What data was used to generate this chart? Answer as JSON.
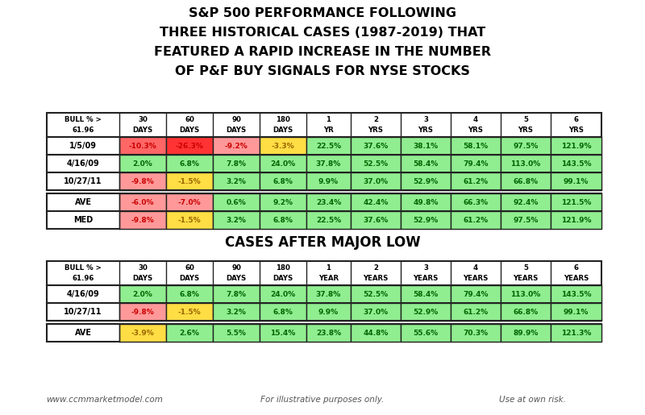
{
  "title_lines": [
    "S&P 500 PERFORMANCE FOLLOWING",
    "THREE HISTORICAL CASES (1987-2019) THAT",
    "FEATURED A RAPID INCREASE IN THE NUMBER",
    "OF P&F BUY SIGNALS FOR NYSE STOCKS"
  ],
  "subtitle2": "CASES AFTER MAJOR LOW",
  "footer": [
    "www.ccmmarketmodel.com",
    "For illustrative purposes only.",
    "Use at own risk."
  ],
  "table1": {
    "col_headers_line1": [
      "BULL % >",
      "30",
      "60",
      "90",
      "180",
      "1",
      "2",
      "3",
      "4",
      "5",
      "6"
    ],
    "col_headers_line2": [
      "61.96",
      "DAYS",
      "DAYS",
      "DAYS",
      "DAYS",
      "YR",
      "YRS",
      "YRS",
      "YRS",
      "YRS",
      "YRS"
    ],
    "rows": [
      {
        "label": "1/5/09",
        "values": [
          "-10.3%",
          "-26.3%",
          "-9.2%",
          "-3.3%",
          "22.5%",
          "37.6%",
          "38.1%",
          "58.1%",
          "97.5%",
          "121.9%"
        ]
      },
      {
        "label": "4/16/09",
        "values": [
          "2.0%",
          "6.8%",
          "7.8%",
          "24.0%",
          "37.8%",
          "52.5%",
          "58.4%",
          "79.4%",
          "113.0%",
          "143.5%"
        ]
      },
      {
        "label": "10/27/11",
        "values": [
          "-9.8%",
          "-1.5%",
          "3.2%",
          "6.8%",
          "9.9%",
          "37.0%",
          "52.9%",
          "61.2%",
          "66.8%",
          "99.1%"
        ]
      }
    ],
    "ave_row": {
      "label": "AVE",
      "values": [
        "-6.0%",
        "-7.0%",
        "0.6%",
        "9.2%",
        "23.4%",
        "42.4%",
        "49.8%",
        "66.3%",
        "92.4%",
        "121.5%"
      ]
    },
    "med_row": {
      "label": "MED",
      "values": [
        "-9.8%",
        "-1.5%",
        "3.2%",
        "6.8%",
        "22.5%",
        "37.6%",
        "52.9%",
        "61.2%",
        "97.5%",
        "121.9%"
      ]
    },
    "cell_colors": [
      [
        "#ff6666",
        "#ff3333",
        "#ff9999",
        "#ffdd44",
        "#90ee90",
        "#90ee90",
        "#90ee90",
        "#90ee90",
        "#90ee90",
        "#90ee90"
      ],
      [
        "#90ee90",
        "#90ee90",
        "#90ee90",
        "#90ee90",
        "#90ee90",
        "#90ee90",
        "#90ee90",
        "#90ee90",
        "#90ee90",
        "#90ee90"
      ],
      [
        "#ff9999",
        "#ffdd44",
        "#90ee90",
        "#90ee90",
        "#90ee90",
        "#90ee90",
        "#90ee90",
        "#90ee90",
        "#90ee90",
        "#90ee90"
      ]
    ],
    "ave_colors": [
      "#ff9999",
      "#ff9999",
      "#90ee90",
      "#90ee90",
      "#90ee90",
      "#90ee90",
      "#90ee90",
      "#90ee90",
      "#90ee90",
      "#90ee90"
    ],
    "med_colors": [
      "#ff9999",
      "#ffdd44",
      "#90ee90",
      "#90ee90",
      "#90ee90",
      "#90ee90",
      "#90ee90",
      "#90ee90",
      "#90ee90",
      "#90ee90"
    ]
  },
  "table2": {
    "col_headers_line1": [
      "BULL % >",
      "30",
      "60",
      "90",
      "180",
      "1",
      "2",
      "3",
      "4",
      "5",
      "6"
    ],
    "col_headers_line2": [
      "61.96",
      "DAYS",
      "DAYS",
      "DAYS",
      "DAYS",
      "YEAR",
      "YEARS",
      "YEARS",
      "YEARS",
      "YEARS",
      "YEARS"
    ],
    "rows": [
      {
        "label": "4/16/09",
        "values": [
          "2.0%",
          "6.8%",
          "7.8%",
          "24.0%",
          "37.8%",
          "52.5%",
          "58.4%",
          "79.4%",
          "113.0%",
          "143.5%"
        ]
      },
      {
        "label": "10/27/11",
        "values": [
          "-9.8%",
          "-1.5%",
          "3.2%",
          "6.8%",
          "9.9%",
          "37.0%",
          "52.9%",
          "61.2%",
          "66.8%",
          "99.1%"
        ]
      }
    ],
    "ave_row": {
      "label": "AVE",
      "values": [
        "-3.9%",
        "2.6%",
        "5.5%",
        "15.4%",
        "23.8%",
        "44.8%",
        "55.6%",
        "70.3%",
        "89.9%",
        "121.3%"
      ]
    },
    "cell_colors": [
      [
        "#90ee90",
        "#90ee90",
        "#90ee90",
        "#90ee90",
        "#90ee90",
        "#90ee90",
        "#90ee90",
        "#90ee90",
        "#90ee90",
        "#90ee90"
      ],
      [
        "#ff9999",
        "#ffdd44",
        "#90ee90",
        "#90ee90",
        "#90ee90",
        "#90ee90",
        "#90ee90",
        "#90ee90",
        "#90ee90",
        "#90ee90"
      ]
    ],
    "ave_colors": [
      "#ffdd44",
      "#90ee90",
      "#90ee90",
      "#90ee90",
      "#90ee90",
      "#90ee90",
      "#90ee90",
      "#90ee90",
      "#90ee90",
      "#90ee90"
    ]
  }
}
